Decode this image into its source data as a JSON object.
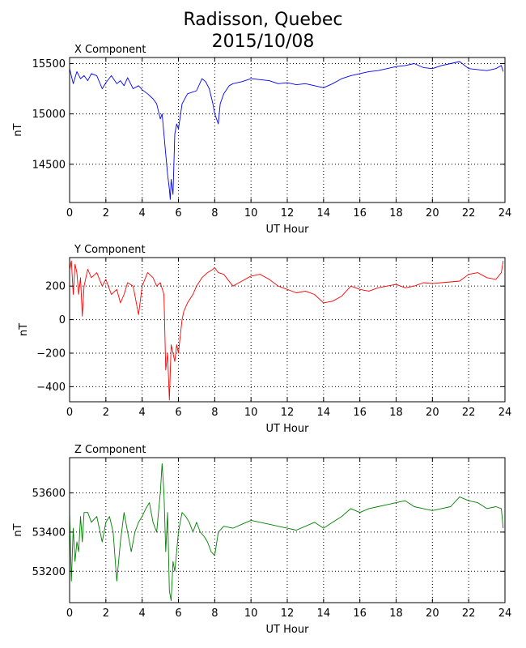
{
  "title": {
    "line1": "Radisson, Quebec",
    "line2": "2015/10/08"
  },
  "chart_data": [
    {
      "type": "line",
      "title": "X Component",
      "xlabel": "UT Hour",
      "ylabel": "nT",
      "xlim": [
        0,
        24
      ],
      "ylim": [
        14120,
        15560
      ],
      "xticks": [
        0,
        2,
        4,
        6,
        8,
        10,
        12,
        14,
        16,
        18,
        20,
        22,
        24
      ],
      "yticks": [
        14500,
        15000,
        15500
      ],
      "grid": true,
      "color": "#0000ff",
      "series": [
        {
          "x": [
            0,
            0.2,
            0.4,
            0.6,
            0.8,
            1.0,
            1.2,
            1.5,
            1.8,
            2.0,
            2.3,
            2.6,
            2.8,
            3.0,
            3.2,
            3.5,
            3.8,
            4.0,
            4.3,
            4.6,
            4.8,
            5.0,
            5.1,
            5.2,
            5.3,
            5.4,
            5.5,
            5.55,
            5.6,
            5.7,
            5.8,
            5.9,
            6.0,
            6.2,
            6.5,
            7.0,
            7.3,
            7.5,
            7.7,
            7.9,
            8.0,
            8.1,
            8.2,
            8.3,
            8.5,
            8.8,
            9.0,
            9.5,
            10.0,
            10.5,
            11.0,
            11.5,
            12.0,
            12.5,
            13.0,
            13.5,
            14.0,
            14.5,
            15.0,
            15.5,
            16.0,
            16.5,
            17.0,
            17.5,
            18.0,
            18.5,
            19.0,
            19.5,
            20.0,
            20.5,
            21.0,
            21.5,
            22.0,
            22.5,
            23.0,
            23.5,
            23.8,
            23.9
          ],
          "values": [
            15450,
            15300,
            15420,
            15350,
            15380,
            15330,
            15400,
            15380,
            15250,
            15310,
            15380,
            15300,
            15330,
            15280,
            15360,
            15250,
            15280,
            15240,
            15200,
            15150,
            15100,
            14950,
            15000,
            14800,
            14600,
            14400,
            14250,
            14150,
            14350,
            14200,
            14800,
            14900,
            14850,
            15100,
            15200,
            15230,
            15350,
            15320,
            15250,
            15100,
            15000,
            14950,
            14900,
            15100,
            15200,
            15280,
            15300,
            15320,
            15350,
            15340,
            15330,
            15300,
            15310,
            15290,
            15300,
            15280,
            15260,
            15300,
            15350,
            15380,
            15400,
            15420,
            15430,
            15450,
            15470,
            15480,
            15500,
            15460,
            15450,
            15480,
            15500,
            15520,
            15450,
            15440,
            15430,
            15450,
            15480,
            15420
          ]
        }
      ]
    },
    {
      "type": "line",
      "title": "Y Component",
      "xlabel": "UT Hour",
      "ylabel": "nT",
      "xlim": [
        0,
        24
      ],
      "ylim": [
        -490,
        370
      ],
      "xticks": [
        0,
        2,
        4,
        6,
        8,
        10,
        12,
        14,
        16,
        18,
        20,
        22,
        24
      ],
      "yticks": [
        -400,
        -200,
        0,
        200
      ],
      "grid": true,
      "color": "#ff0000",
      "series": [
        {
          "x": [
            0,
            0.1,
            0.2,
            0.3,
            0.4,
            0.5,
            0.6,
            0.7,
            0.8,
            1.0,
            1.2,
            1.5,
            1.8,
            2.0,
            2.3,
            2.6,
            2.8,
            3.0,
            3.2,
            3.5,
            3.8,
            4.0,
            4.3,
            4.6,
            4.8,
            5.0,
            5.2,
            5.3,
            5.4,
            5.5,
            5.6,
            5.7,
            5.8,
            5.9,
            6.0,
            6.1,
            6.2,
            6.3,
            6.5,
            6.8,
            7.0,
            7.3,
            7.6,
            7.9,
            8.0,
            8.2,
            8.5,
            9.0,
            9.5,
            10.0,
            10.5,
            11.0,
            11.5,
            12.0,
            12.5,
            13.0,
            13.5,
            14.0,
            14.5,
            15.0,
            15.5,
            16.0,
            16.5,
            17.0,
            17.5,
            18.0,
            18.5,
            19.0,
            19.5,
            20.0,
            20.5,
            21.0,
            21.5,
            22.0,
            22.5,
            23.0,
            23.5,
            23.8,
            23.9
          ],
          "values": [
            300,
            350,
            150,
            330,
            280,
            150,
            250,
            20,
            200,
            300,
            250,
            280,
            200,
            240,
            150,
            180,
            100,
            150,
            220,
            200,
            30,
            200,
            280,
            250,
            200,
            220,
            150,
            -300,
            -200,
            -480,
            -150,
            -200,
            -250,
            -150,
            -200,
            -100,
            0,
            50,
            100,
            150,
            200,
            250,
            280,
            300,
            310,
            280,
            270,
            200,
            230,
            260,
            270,
            240,
            200,
            180,
            160,
            170,
            150,
            100,
            110,
            140,
            200,
            180,
            170,
            190,
            200,
            210,
            190,
            200,
            220,
            215,
            220,
            225,
            230,
            270,
            280,
            250,
            240,
            280,
            350
          ]
        }
      ]
    },
    {
      "type": "line",
      "title": "Z Component",
      "xlabel": "UT Hour",
      "ylabel": "nT",
      "xlim": [
        0,
        24
      ],
      "ylim": [
        53040,
        53780
      ],
      "xticks": [
        0,
        2,
        4,
        6,
        8,
        10,
        12,
        14,
        16,
        18,
        20,
        22,
        24
      ],
      "yticks": [
        53200,
        53400,
        53600
      ],
      "grid": true,
      "color": "#008000",
      "series": [
        {
          "x": [
            0,
            0.1,
            0.2,
            0.3,
            0.4,
            0.5,
            0.6,
            0.7,
            0.8,
            1.0,
            1.2,
            1.5,
            1.8,
            2.0,
            2.2,
            2.4,
            2.6,
            2.8,
            3.0,
            3.2,
            3.4,
            3.6,
            3.8,
            4.0,
            4.2,
            4.4,
            4.6,
            4.8,
            5.0,
            5.1,
            5.2,
            5.3,
            5.4,
            5.5,
            5.6,
            5.7,
            5.8,
            5.9,
            6.0,
            6.1,
            6.2,
            6.4,
            6.6,
            6.8,
            7.0,
            7.2,
            7.4,
            7.6,
            7.8,
            8.0,
            8.2,
            8.5,
            9.0,
            9.5,
            10.0,
            10.5,
            11.0,
            11.5,
            12.0,
            12.5,
            13.0,
            13.5,
            14.0,
            14.5,
            15.0,
            15.5,
            16.0,
            16.5,
            17.0,
            17.5,
            18.0,
            18.5,
            19.0,
            19.5,
            20.0,
            20.5,
            21.0,
            21.5,
            22.0,
            22.5,
            23.0,
            23.5,
            23.8,
            23.9
          ],
          "values": [
            53500,
            53150,
            53420,
            53250,
            53350,
            53300,
            53480,
            53350,
            53500,
            53500,
            53450,
            53480,
            53350,
            53450,
            53480,
            53400,
            53150,
            53350,
            53500,
            53400,
            53300,
            53400,
            53450,
            53480,
            53520,
            53550,
            53450,
            53400,
            53600,
            53750,
            53600,
            53300,
            53500,
            53100,
            53050,
            53250,
            53200,
            53300,
            53400,
            53450,
            53500,
            53480,
            53450,
            53400,
            53450,
            53400,
            53380,
            53350,
            53300,
            53280,
            53400,
            53430,
            53420,
            53440,
            53460,
            53450,
            53440,
            53430,
            53420,
            53410,
            53430,
            53450,
            53420,
            53450,
            53480,
            53520,
            53500,
            53520,
            53530,
            53540,
            53550,
            53560,
            53530,
            53520,
            53510,
            53520,
            53530,
            53580,
            53560,
            53550,
            53520,
            53530,
            53520,
            53420
          ]
        }
      ]
    }
  ]
}
